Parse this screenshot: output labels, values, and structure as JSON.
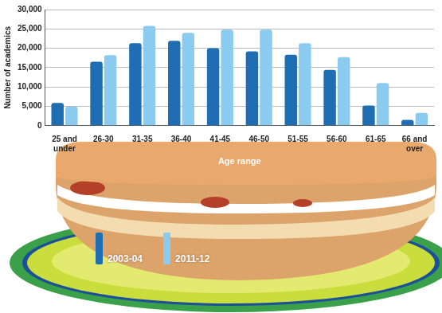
{
  "chart_data": {
    "type": "bar",
    "categories": [
      "25 and under",
      "26-30",
      "31-35",
      "36-40",
      "41-45",
      "46-50",
      "51-55",
      "56-60",
      "61-65",
      "66 and over"
    ],
    "series": [
      {
        "name": "2003-04",
        "color": "#1f6eb4",
        "values": [
          5900,
          16500,
          21300,
          21900,
          20000,
          19200,
          18300,
          14400,
          5200,
          1500
        ]
      },
      {
        "name": "2011-12",
        "color": "#8ccbf0",
        "values": [
          4900,
          18200,
          25800,
          24000,
          24800,
          24800,
          21300,
          17700,
          11000,
          3300
        ]
      }
    ],
    "x_label": "Age range",
    "y_label": "Number of academics",
    "ylim": [
      0,
      30000
    ],
    "yticks": [
      0,
      {
        "value": 5000,
        "label": "5,000"
      },
      {
        "value": 10000,
        "label": "10,000"
      },
      {
        "value": 15000,
        "label": "15,000"
      },
      {
        "value": 20000,
        "label": "20,000"
      },
      {
        "value": 25000,
        "label": "25,000"
      },
      {
        "value": 30000,
        "label": "30,000"
      }
    ],
    "grid": true,
    "legend": "lower-left"
  }
}
